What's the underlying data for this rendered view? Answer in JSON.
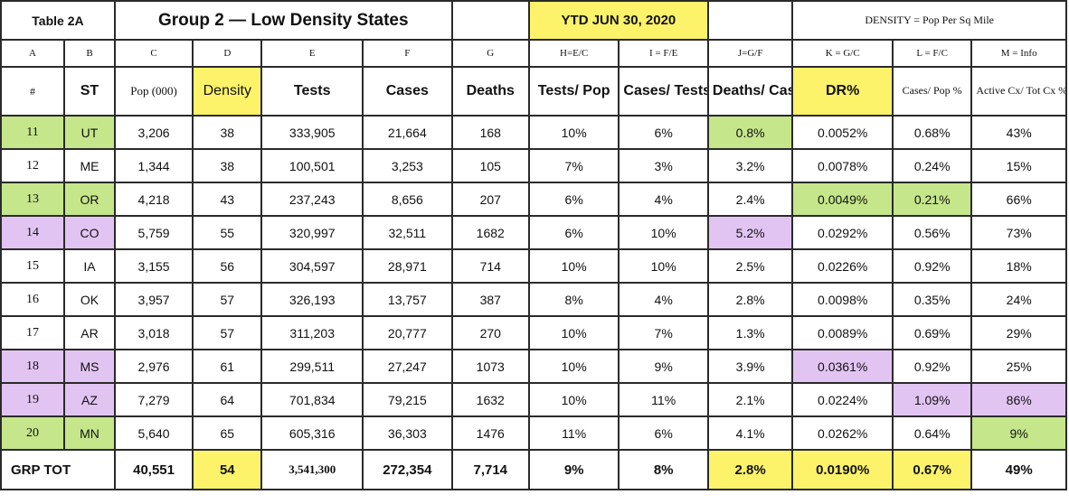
{
  "title_row": {
    "table_label": "Table 2A",
    "group_title": "Group 2  — Low Density States",
    "ytd": "YTD  JUN 30, 2020",
    "density_note": "DENSITY = Pop Per Sq Mile"
  },
  "letter_row": [
    "A",
    "B",
    "C",
    "D",
    "E",
    "F",
    "G",
    "H=E/C",
    "I = F/E",
    "J=G/F",
    "K = G/C",
    "L = F/C",
    "M = Info"
  ],
  "header_row": {
    "num": "#",
    "st": "ST",
    "pop": "Pop (000)",
    "density": "Density",
    "tests": "Tests",
    "cases": "Cases",
    "deaths": "Deaths",
    "tests_pop": "Tests/ Pop",
    "cases_tests": "Cases/ Tests",
    "deaths_cases": "Deaths/ Cases",
    "dr": "DR%",
    "cases_pop": "Cases/ Pop %",
    "active": "Active Cx/ Tot Cx %"
  },
  "rows": [
    {
      "num": "11",
      "st": "UT",
      "pop": "3,206",
      "density": "38",
      "tests": "333,905",
      "cases": "21,664",
      "deaths": "168",
      "tests_pop": "10%",
      "cases_tests": "6%",
      "deaths_cases": "0.8%",
      "dr": "0.0052%",
      "cases_pop": "0.68%",
      "active": "43%"
    },
    {
      "num": "12",
      "st": "ME",
      "pop": "1,344",
      "density": "38",
      "tests": "100,501",
      "cases": "3,253",
      "deaths": "105",
      "tests_pop": "7%",
      "cases_tests": "3%",
      "deaths_cases": "3.2%",
      "dr": "0.0078%",
      "cases_pop": "0.24%",
      "active": "15%"
    },
    {
      "num": "13",
      "st": "OR",
      "pop": "4,218",
      "density": "43",
      "tests": "237,243",
      "cases": "8,656",
      "deaths": "207",
      "tests_pop": "6%",
      "cases_tests": "4%",
      "deaths_cases": "2.4%",
      "dr": "0.0049%",
      "cases_pop": "0.21%",
      "active": "66%"
    },
    {
      "num": "14",
      "st": "CO",
      "pop": "5,759",
      "density": "55",
      "tests": "320,997",
      "cases": "32,511",
      "deaths": "1682",
      "tests_pop": "6%",
      "cases_tests": "10%",
      "deaths_cases": "5.2%",
      "dr": "0.0292%",
      "cases_pop": "0.56%",
      "active": "73%"
    },
    {
      "num": "15",
      "st": "IA",
      "pop": "3,155",
      "density": "56",
      "tests": "304,597",
      "cases": "28,971",
      "deaths": "714",
      "tests_pop": "10%",
      "cases_tests": "10%",
      "deaths_cases": "2.5%",
      "dr": "0.0226%",
      "cases_pop": "0.92%",
      "active": "18%"
    },
    {
      "num": "16",
      "st": "OK",
      "pop": "3,957",
      "density": "57",
      "tests": "326,193",
      "cases": "13,757",
      "deaths": "387",
      "tests_pop": "8%",
      "cases_tests": "4%",
      "deaths_cases": "2.8%",
      "dr": "0.0098%",
      "cases_pop": "0.35%",
      "active": "24%"
    },
    {
      "num": "17",
      "st": "AR",
      "pop": "3,018",
      "density": "57",
      "tests": "311,203",
      "cases": "20,777",
      "deaths": "270",
      "tests_pop": "10%",
      "cases_tests": "7%",
      "deaths_cases": "1.3%",
      "dr": "0.0089%",
      "cases_pop": "0.69%",
      "active": "29%"
    },
    {
      "num": "18",
      "st": "MS",
      "pop": "2,976",
      "density": "61",
      "tests": "299,511",
      "cases": "27,247",
      "deaths": "1073",
      "tests_pop": "10%",
      "cases_tests": "9%",
      "deaths_cases": "3.9%",
      "dr": "0.0361%",
      "cases_pop": "0.92%",
      "active": "25%"
    },
    {
      "num": "19",
      "st": "AZ",
      "pop": "7,279",
      "density": "64",
      "tests": "701,834",
      "cases": "79,215",
      "deaths": "1632",
      "tests_pop": "10%",
      "cases_tests": "11%",
      "deaths_cases": "2.1%",
      "dr": "0.0224%",
      "cases_pop": "1.09%",
      "active": "86%"
    },
    {
      "num": "20",
      "st": "MN",
      "pop": "5,640",
      "density": "65",
      "tests": "605,316",
      "cases": "36,303",
      "deaths": "1476",
      "tests_pop": "11%",
      "cases_tests": "6%",
      "deaths_cases": "4.1%",
      "dr": "0.0262%",
      "cases_pop": "0.64%",
      "active": "9%"
    }
  ],
  "total_row": {
    "label": "GRP TOT",
    "pop": "40,551",
    "density": "54",
    "tests": "3,541,300",
    "cases": "272,354",
    "deaths": "7,714",
    "tests_pop": "9%",
    "cases_tests": "8%",
    "deaths_cases": "2.8%",
    "dr": "0.0190%",
    "cases_pop": "0.67%",
    "active": "49%"
  },
  "colors": {
    "green": "#c5e68a",
    "purple": "#e2c4f3",
    "yellow": "#fdf36a",
    "border": "#2a2a2a"
  }
}
